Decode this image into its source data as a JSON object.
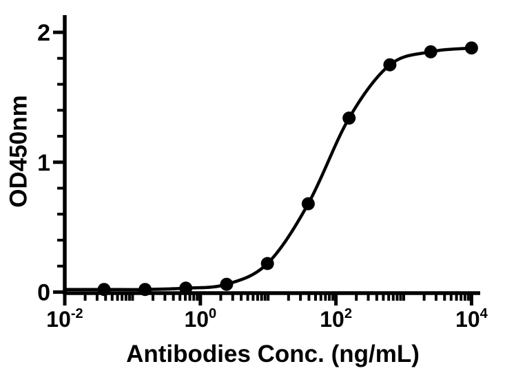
{
  "chart_data": {
    "type": "line",
    "title": "",
    "xlabel": "Antibodies Conc. (ng/mL)",
    "ylabel": "OD450nm",
    "x_scale": "log10",
    "x_range_log": [
      -2,
      4
    ],
    "ylim": [
      0,
      2.15
    ],
    "grid": false,
    "legend": false,
    "marker": "filled-circle",
    "color": "#000000",
    "background": "#ffffff",
    "x_ticks": [
      {
        "log": -2,
        "mantissa": "10",
        "exponent": "-2"
      },
      {
        "log": 0,
        "mantissa": "10",
        "exponent": "0"
      },
      {
        "log": 2,
        "mantissa": "10",
        "exponent": "2"
      },
      {
        "log": 4,
        "mantissa": "10",
        "exponent": "4"
      }
    ],
    "y_ticks": [
      {
        "value": 0,
        "label": "0"
      },
      {
        "value": 1,
        "label": "1"
      },
      {
        "value": 2,
        "label": "2"
      }
    ],
    "y_minor_tick_step": 0.2,
    "x_minor_decades": [
      -2,
      -1,
      0,
      1,
      2,
      3
    ],
    "x_minor_odd_decade_ticks": [
      -1,
      1,
      3
    ],
    "points": [
      {
        "conc_ng_ml": 0.038,
        "od450": 0.02
      },
      {
        "conc_ng_ml": 0.153,
        "od450": 0.02
      },
      {
        "conc_ng_ml": 0.61,
        "od450": 0.03
      },
      {
        "conc_ng_ml": 2.441,
        "od450": 0.06
      },
      {
        "conc_ng_ml": 9.766,
        "od450": 0.22
      },
      {
        "conc_ng_ml": 39.063,
        "od450": 0.68
      },
      {
        "conc_ng_ml": 156.25,
        "od450": 1.34
      },
      {
        "conc_ng_ml": 625,
        "od450": 1.75
      },
      {
        "conc_ng_ml": 2500,
        "od450": 1.85
      },
      {
        "conc_ng_ml": 10000,
        "od450": 1.88
      }
    ]
  }
}
